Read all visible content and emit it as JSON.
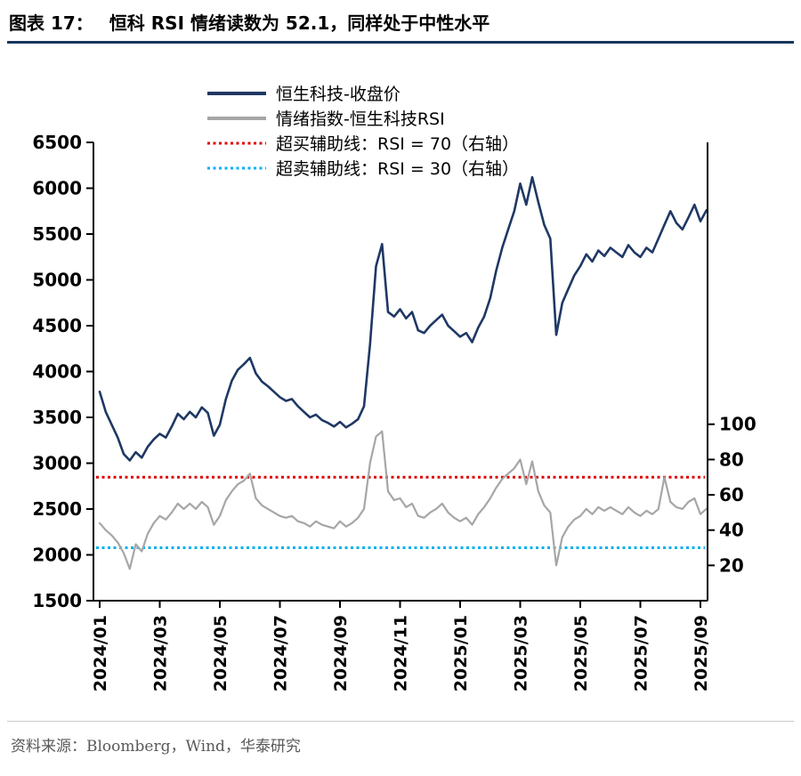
{
  "header": {
    "title_prefix": "图表 17：",
    "title_text": "恒科 RSI 情绪读数为 52.1，同样处于中性水平"
  },
  "footer": {
    "source_text": "资料来源：Bloomberg，Wind，华泰研究"
  },
  "chart_data": {
    "type": "line",
    "title": "图表 17： 恒科 RSI 情绪读数为 52.1，同样处于中性水平",
    "legend_position": "top-inside",
    "grid": false,
    "legend": [
      {
        "label": "恒生科技-收盘价",
        "color": "#1F3864",
        "style": "solid"
      },
      {
        "label": "情绪指数-恒生科技RSI",
        "color": "#A6A6A6",
        "style": "solid"
      },
      {
        "label": "超买辅助线：RSI = 70（右轴）",
        "color": "#E00000",
        "style": "dotted"
      },
      {
        "label": "超卖辅助线：RSI = 30（右轴）",
        "color": "#00B0F0",
        "style": "dotted"
      }
    ],
    "x_axis": {
      "ticks": [
        "2024/01",
        "2024/03",
        "2024/05",
        "2024/07",
        "2024/09",
        "2024/11",
        "2025/01",
        "2025/03",
        "2025/05",
        "2025/07",
        "2025/09"
      ],
      "tick_interval_months": 2,
      "label_rotation_deg": -90
    },
    "y_axis_left": {
      "min": 1500,
      "max": 6500,
      "ticks": [
        1500,
        2000,
        2500,
        3000,
        3500,
        4000,
        4500,
        5000,
        5500,
        6000,
        6500
      ]
    },
    "y_axis_right": {
      "min": 0,
      "max": 100,
      "ticks": [
        20,
        40,
        60,
        80,
        100
      ],
      "left_equiv_rsi0": 1500,
      "left_equiv_rsi100": 3425
    },
    "reference_lines": [
      {
        "name": "overbought",
        "value": 70,
        "axis": "right",
        "color": "#E00000"
      },
      {
        "name": "oversold",
        "value": 30,
        "axis": "right",
        "color": "#00B0F0"
      }
    ],
    "x_start": 0,
    "x_step": 0.2,
    "series": [
      {
        "name": "恒生科技-收盘价",
        "axis": "left",
        "color": "#1F3864",
        "width": 2.6,
        "values": [
          3780,
          3560,
          3420,
          3280,
          3100,
          3030,
          3120,
          3060,
          3180,
          3260,
          3320,
          3280,
          3400,
          3540,
          3480,
          3560,
          3500,
          3610,
          3550,
          3300,
          3420,
          3700,
          3900,
          4020,
          4080,
          4150,
          3980,
          3890,
          3840,
          3780,
          3720,
          3680,
          3700,
          3620,
          3560,
          3500,
          3530,
          3470,
          3440,
          3400,
          3450,
          3390,
          3430,
          3480,
          3620,
          4300,
          5150,
          5390,
          4650,
          4600,
          4680,
          4580,
          4650,
          4450,
          4420,
          4500,
          4560,
          4620,
          4500,
          4440,
          4380,
          4420,
          4320,
          4480,
          4600,
          4800,
          5100,
          5350,
          5550,
          5750,
          6050,
          5820,
          6120,
          5850,
          5600,
          5450,
          4400,
          4750,
          4900,
          5050,
          5150,
          5280,
          5200,
          5320,
          5260,
          5350,
          5300,
          5250,
          5380,
          5300,
          5250,
          5350,
          5300,
          5450,
          5600,
          5750,
          5620,
          5550,
          5680,
          5820,
          5640,
          5760
        ]
      },
      {
        "name": "情绪指数-恒生科技RSI",
        "axis": "right",
        "color": "#A6A6A6",
        "width": 2.2,
        "values": [
          44,
          40,
          37,
          33,
          27,
          18,
          32,
          28,
          38,
          44,
          48,
          46,
          50,
          55,
          52,
          55,
          52,
          56,
          53,
          43,
          48,
          57,
          62,
          66,
          68,
          72,
          58,
          54,
          52,
          50,
          48,
          47,
          48,
          45,
          44,
          42,
          45,
          43,
          42,
          41,
          45,
          42,
          44,
          47,
          52,
          78,
          93,
          96,
          62,
          57,
          58,
          53,
          55,
          48,
          47,
          50,
          52,
          55,
          50,
          47,
          45,
          47,
          43,
          49,
          53,
          58,
          64,
          69,
          72,
          75,
          80,
          66,
          79,
          62,
          54,
          50,
          20,
          36,
          42,
          46,
          48,
          52,
          49,
          53,
          51,
          53,
          51,
          49,
          53,
          50,
          48,
          51,
          49,
          52,
          70,
          56,
          53,
          52,
          56,
          58,
          49,
          52.1
        ]
      }
    ]
  }
}
